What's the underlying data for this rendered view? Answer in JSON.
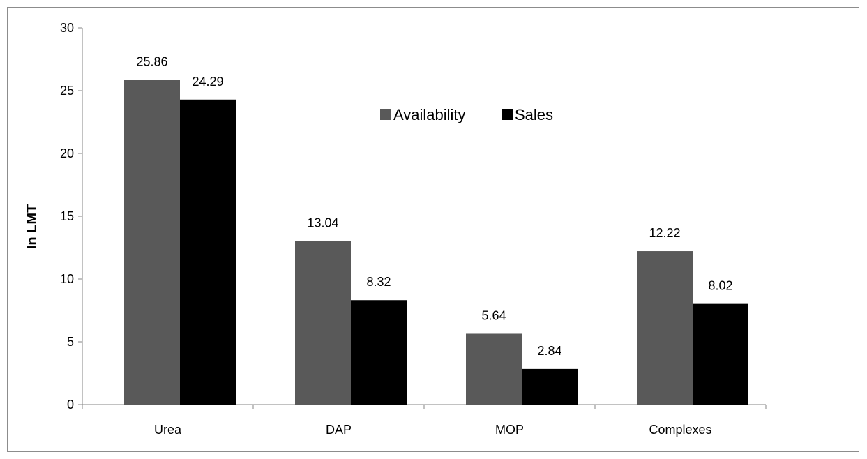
{
  "chart_data": {
    "type": "bar",
    "categories": [
      "Urea",
      "DAP",
      "MOP",
      "Complexes"
    ],
    "series": [
      {
        "name": "Availability",
        "values": [
          25.86,
          13.04,
          5.64,
          12.22
        ],
        "labels": [
          "25.86",
          "13.04",
          "5.64",
          "12.22"
        ],
        "color": "#595959"
      },
      {
        "name": "Sales",
        "values": [
          24.29,
          8.32,
          2.84,
          8.02
        ],
        "labels": [
          "24.29",
          "8.32",
          "2.84",
          "8.02"
        ],
        "color": "#000000"
      }
    ],
    "title": "",
    "xlabel": "",
    "ylabel": "In LMT",
    "ylim": [
      0,
      30
    ],
    "yticks": [
      "0",
      "5",
      "10",
      "15",
      "20",
      "25",
      "30"
    ],
    "grid": false,
    "legend": "top-center"
  }
}
